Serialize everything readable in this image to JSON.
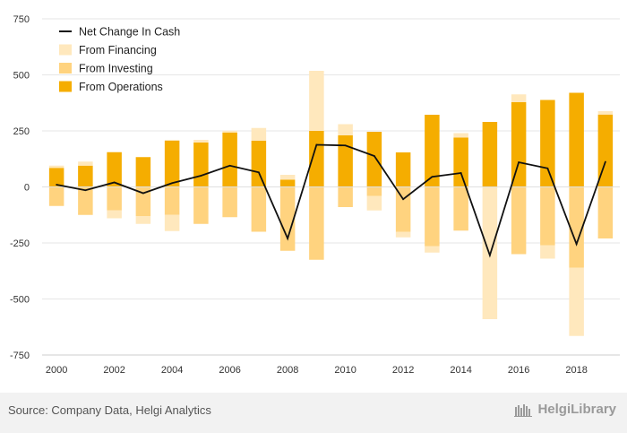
{
  "chart_data": {
    "type": "bar",
    "subtype": "stacked-bar-with-line",
    "title": "",
    "xlabel": "",
    "ylabel": "",
    "ylim": [
      -750,
      750
    ],
    "yticks": [
      -750,
      -500,
      -250,
      0,
      250,
      500,
      750
    ],
    "yticks_labels": [
      "-750",
      "-500",
      "-250",
      "0",
      "250",
      "500",
      "750"
    ],
    "categories": [
      2000,
      2001,
      2002,
      2003,
      2004,
      2005,
      2006,
      2007,
      2008,
      2009,
      2010,
      2011,
      2012,
      2013,
      2014,
      2015,
      2016,
      2017,
      2018,
      2019
    ],
    "x_tick_labels": [
      "2000",
      "2002",
      "2004",
      "2006",
      "2008",
      "2010",
      "2012",
      "2014",
      "2016",
      "2018"
    ],
    "x_tick_years": [
      2000,
      2002,
      2004,
      2006,
      2008,
      2010,
      2012,
      2014,
      2016,
      2018
    ],
    "grid": true,
    "legend_position": "top-left",
    "series": [
      {
        "name": "From Operations",
        "kind": "bar",
        "color": "#f5ad00",
        "values": [
          85,
          95,
          155,
          133,
          207,
          198,
          243,
          206,
          32,
          250,
          230,
          246,
          154,
          322,
          220,
          290,
          378,
          388,
          420,
          323
        ]
      },
      {
        "name": "From Investing",
        "kind": "bar",
        "color": "#ffd37f",
        "values": [
          -85,
          -125,
          -105,
          -130,
          -125,
          -165,
          -135,
          -200,
          -285,
          -325,
          -90,
          -40,
          -200,
          -265,
          -195,
          0,
          -300,
          -260,
          -360,
          -230
        ]
      },
      {
        "name": "From Financing",
        "kind": "bar",
        "color": "#ffe8bd",
        "values": [
          10,
          18,
          -35,
          -35,
          -72,
          12,
          8,
          57,
          22,
          268,
          50,
          -65,
          -25,
          -28,
          20,
          -590,
          35,
          -60,
          -305,
          15
        ]
      },
      {
        "name": "Net Change In Cash",
        "kind": "line",
        "color": "#111111",
        "values": [
          10,
          -15,
          20,
          -28,
          17,
          50,
          95,
          65,
          -230,
          188,
          185,
          138,
          -55,
          45,
          62,
          -305,
          110,
          83,
          -255,
          112
        ]
      }
    ],
    "legend_order": [
      "Net Change In Cash",
      "From Financing",
      "From Investing",
      "From Operations"
    ]
  },
  "footer": {
    "source": "Source: Company Data, Helgi Analytics",
    "brand": "HelgiLibrary"
  }
}
